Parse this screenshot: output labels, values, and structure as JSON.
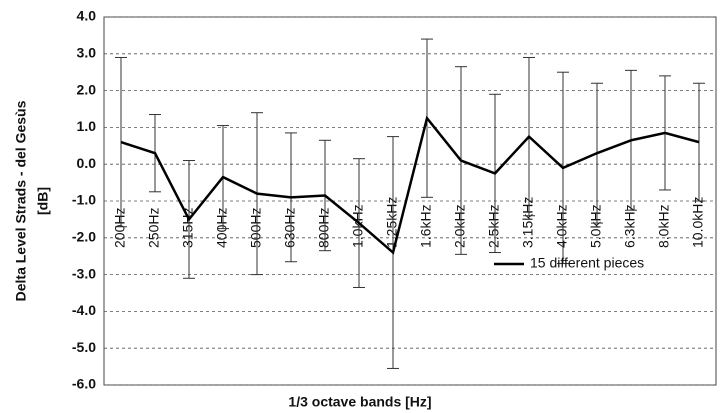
{
  "chart_data": {
    "type": "line",
    "ylabel": [
      "Delta Level Strads - del Gesùs",
      "[dB]"
    ],
    "xlabel": "1/3 octave bands [Hz]",
    "categories": [
      "200Hz",
      "250Hz",
      "315Hz",
      "400Hz",
      "500Hz",
      "630Hz",
      "800Hz",
      "1.0kHz",
      "1.25kHz",
      "1.6kHz",
      "2.0kHz",
      "2.5kHz",
      "3.15kHz",
      "4.0kHz",
      "5.0kHz",
      "6.3kHz",
      "8.0kHz",
      "10.0kHz"
    ],
    "series": [
      {
        "name": "15 different pieces",
        "color": "#000000",
        "values": [
          0.6,
          0.3,
          -1.5,
          -0.35,
          -0.8,
          -0.9,
          -0.85,
          -1.6,
          -2.4,
          1.25,
          0.1,
          -0.25,
          0.75,
          -0.1,
          0.3,
          0.65,
          0.85,
          0.6
        ],
        "errors": [
          2.3,
          1.05,
          1.6,
          1.4,
          2.2,
          1.75,
          1.5,
          1.75,
          3.15,
          2.15,
          2.55,
          2.15,
          2.15,
          2.6,
          1.9,
          1.9,
          1.55,
          1.6
        ]
      }
    ],
    "ylim": [
      -6,
      4
    ],
    "yticks": [
      {
        "value": -6,
        "label": "-6.0"
      },
      {
        "value": -5,
        "label": "-5.0"
      },
      {
        "value": -4,
        "label": "-4.0"
      },
      {
        "value": -3,
        "label": "-3.0"
      },
      {
        "value": -2,
        "label": "-2.0"
      },
      {
        "value": -1,
        "label": "-1.0"
      },
      {
        "value": 0,
        "label": "0.0"
      },
      {
        "value": 1,
        "label": "1.0"
      },
      {
        "value": 2,
        "label": "2.0"
      },
      {
        "value": 3,
        "label": "3.0"
      },
      {
        "value": 4,
        "label": "4.0"
      }
    ],
    "grid": true,
    "legend": "lower right"
  }
}
